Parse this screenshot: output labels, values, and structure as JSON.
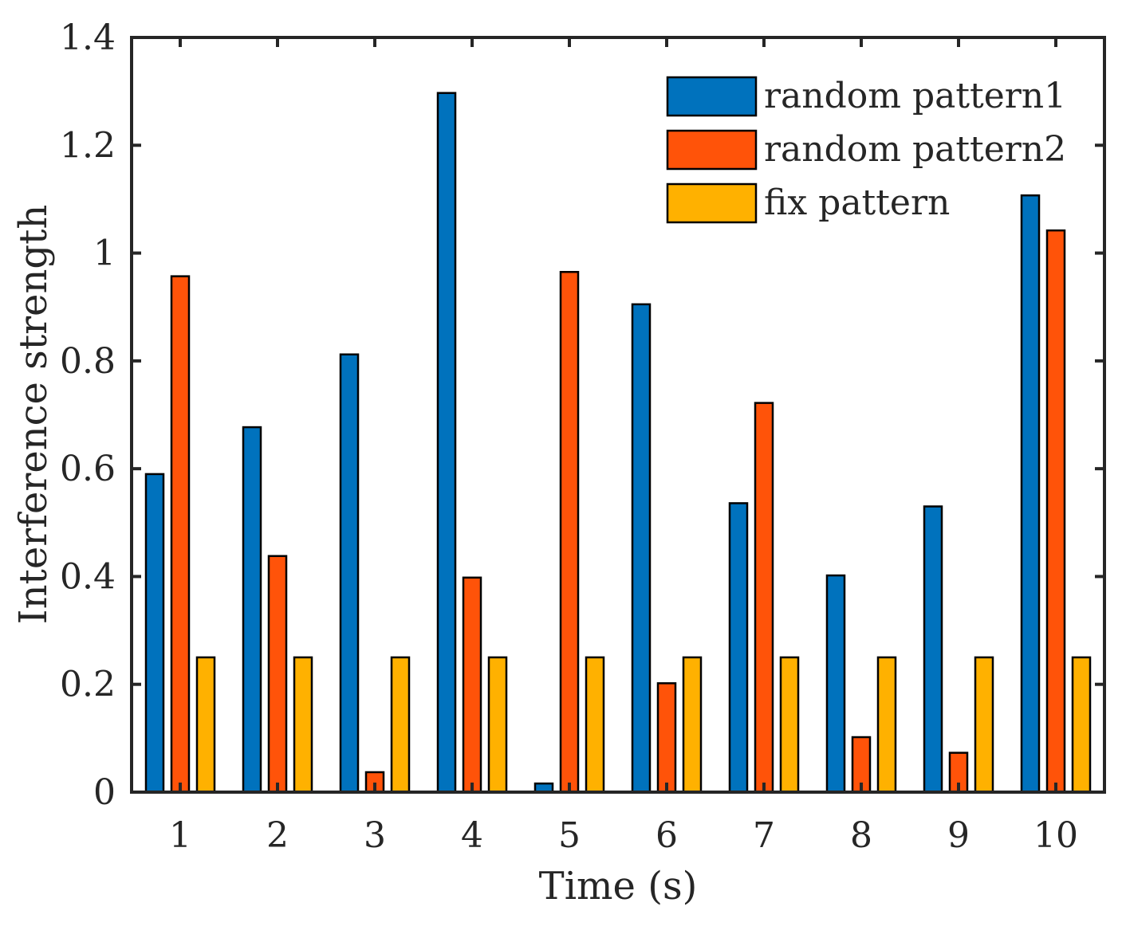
{
  "chart_data": {
    "type": "bar",
    "title": "",
    "xlabel": "Time (s)",
    "ylabel": "Interference strength",
    "ylim": [
      0,
      1.4
    ],
    "yticks": [
      "0",
      "0.2",
      "0.4",
      "0.6",
      "0.8",
      "1",
      "1.2",
      "1.4"
    ],
    "ytick_values": [
      0,
      0.2,
      0.4,
      0.6,
      0.8,
      1.0,
      1.2,
      1.4
    ],
    "categories": [
      "1",
      "2",
      "3",
      "4",
      "5",
      "6",
      "7",
      "8",
      "9",
      "10"
    ],
    "legend_position": "top-right",
    "grid": false,
    "series": [
      {
        "name": "random pattern1",
        "color": "#0072BD",
        "values": [
          0.59,
          0.677,
          0.812,
          1.297,
          0.016,
          0.905,
          0.536,
          0.402,
          0.53,
          1.107
        ]
      },
      {
        "name": "random pattern2",
        "color": "#FF5309",
        "values": [
          0.957,
          0.438,
          0.037,
          0.398,
          0.965,
          0.202,
          0.722,
          0.102,
          0.073,
          1.042
        ]
      },
      {
        "name": "fix pattern",
        "color": "#FFB100",
        "values": [
          0.25,
          0.25,
          0.25,
          0.25,
          0.25,
          0.25,
          0.25,
          0.25,
          0.25,
          0.25
        ]
      }
    ]
  }
}
